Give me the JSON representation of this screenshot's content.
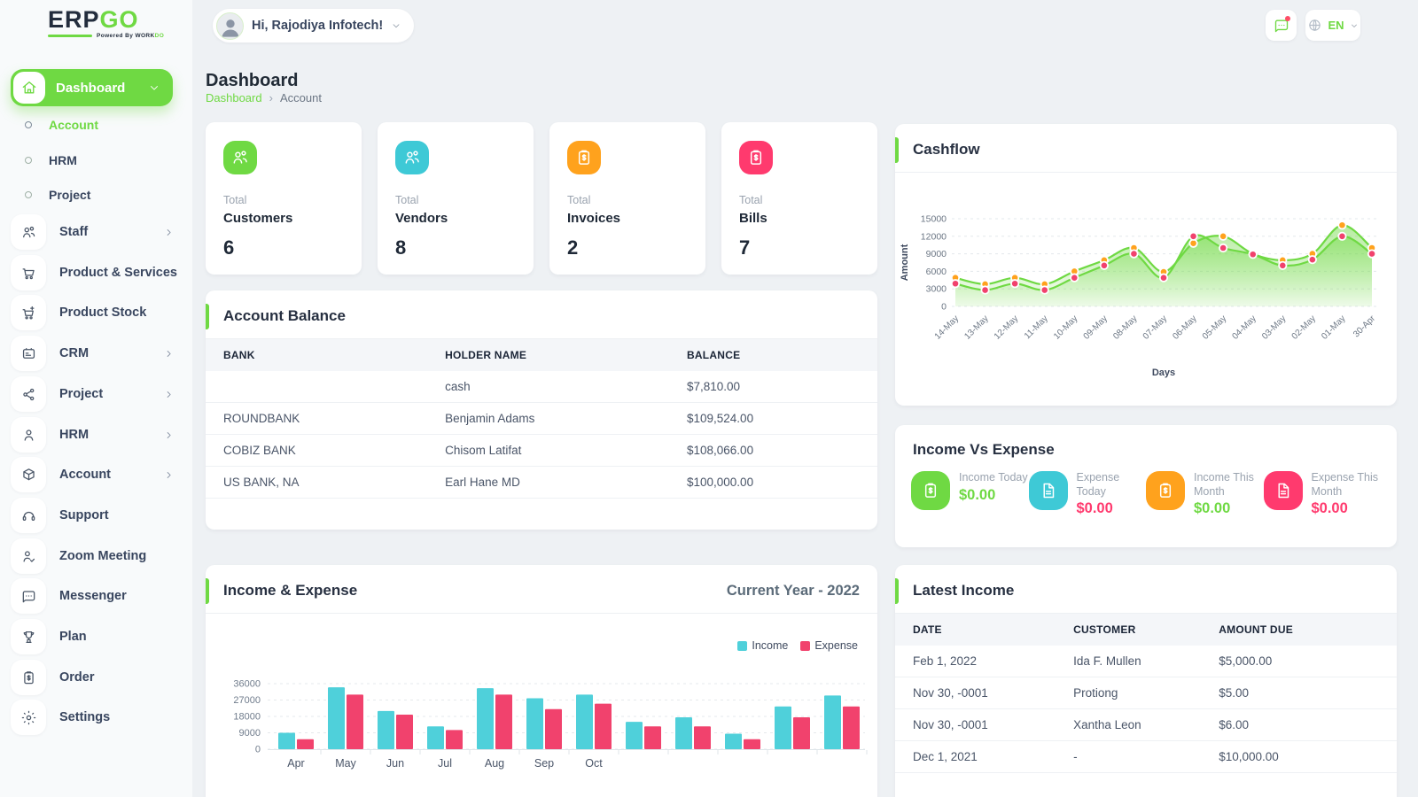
{
  "brand": {
    "name_dark": "ERP",
    "name_green": "GO",
    "powered": "Powered By",
    "powered_dark": "WORK",
    "powered_green": "DO"
  },
  "header": {
    "greeting": "Hi, Rajodiya Infotech!",
    "lang": "EN"
  },
  "page": {
    "title": "Dashboard",
    "breadcrumb_home": "Dashboard",
    "breadcrumb_sep": "›",
    "breadcrumb_current": "Account"
  },
  "sidebar": {
    "dashboard": "Dashboard",
    "subitems": [
      {
        "label": "Account",
        "active": true
      },
      {
        "label": "HRM",
        "active": false
      },
      {
        "label": "Project",
        "active": false
      }
    ],
    "items": [
      {
        "label": "Staff",
        "icon": "users-icon",
        "chevron": true
      },
      {
        "label": "Product & Services",
        "icon": "cart-icon",
        "chevron": false
      },
      {
        "label": "Product Stock",
        "icon": "cart-plus-icon",
        "chevron": false
      },
      {
        "label": "CRM",
        "icon": "id-card-icon",
        "chevron": true
      },
      {
        "label": "Project",
        "icon": "share-nodes-icon",
        "chevron": true
      },
      {
        "label": "HRM",
        "icon": "person-icon",
        "chevron": true
      },
      {
        "label": "Account",
        "icon": "cube-icon",
        "chevron": true
      },
      {
        "label": "Support",
        "icon": "headset-icon",
        "chevron": false
      },
      {
        "label": "Zoom Meeting",
        "icon": "person-check-icon",
        "chevron": false
      },
      {
        "label": "Messenger",
        "icon": "chat-icon",
        "chevron": false
      },
      {
        "label": "Plan",
        "icon": "trophy-icon",
        "chevron": false
      },
      {
        "label": "Order",
        "icon": "clipboard-dollar-icon",
        "chevron": false
      },
      {
        "label": "Settings",
        "icon": "gear-icon",
        "chevron": false
      }
    ]
  },
  "stats": [
    {
      "label_top": "Total",
      "label": "Customers",
      "value": "6",
      "color": "#6fd943",
      "icon": "users-icon"
    },
    {
      "label_top": "Total",
      "label": "Vendors",
      "value": "8",
      "color": "#3ec9d6",
      "icon": "users-icon"
    },
    {
      "label_top": "Total",
      "label": "Invoices",
      "value": "2",
      "color": "#ffa21d",
      "icon": "clipboard-dollar-icon"
    },
    {
      "label_top": "Total",
      "label": "Bills",
      "value": "7",
      "color": "#ff3a6e",
      "icon": "clipboard-dollar-icon"
    }
  ],
  "account_balance": {
    "title": "Account Balance",
    "columns": [
      "BANK",
      "HOLDER NAME",
      "BALANCE"
    ],
    "rows": [
      [
        "",
        "cash",
        "$7,810.00"
      ],
      [
        "ROUNDBANK",
        "Benjamin Adams",
        "$109,524.00"
      ],
      [
        "COBIZ BANK",
        "Chisom Latifat",
        "$108,066.00"
      ],
      [
        "US BANK, NA",
        "Earl Hane MD",
        "$100,000.00"
      ]
    ]
  },
  "latest_income": {
    "title": "Latest Income",
    "columns": [
      "DATE",
      "CUSTOMER",
      "AMOUNT DUE"
    ],
    "rows": [
      [
        "Feb 1, 2022",
        "Ida F. Mullen",
        "$5,000.00"
      ],
      [
        "Nov 30, -0001",
        "Protiong",
        "$5.00"
      ],
      [
        "Nov 30, -0001",
        "Xantha Leon",
        "$6.00"
      ],
      [
        "Dec 1, 2021",
        "-",
        "$10,000.00"
      ]
    ]
  },
  "income_vs_expense": {
    "title": "Income Vs Expense",
    "items": [
      {
        "label": "Income Today",
        "amount": "$0.00",
        "amount_color": "#6fd943",
        "icon": "clipboard-dollar-icon",
        "icon_bg": "#6fd943"
      },
      {
        "label": "Expense Today",
        "amount": "$0.00",
        "amount_color": "#ff3a6e",
        "icon": "document-icon",
        "icon_bg": "#3ec9d6"
      },
      {
        "label": "Income This Month",
        "amount": "$0.00",
        "amount_color": "#6fd943",
        "icon": "clipboard-dollar-icon",
        "icon_bg": "#ffa21d"
      },
      {
        "label": "Expense This Month",
        "amount": "$0.00",
        "amount_color": "#ff3a6e",
        "icon": "document-icon",
        "icon_bg": "#ff3a6e"
      }
    ]
  },
  "chart_data": [
    {
      "id": "cashflow",
      "type": "area",
      "title": "Cashflow",
      "xlabel": "Days",
      "ylabel": "Amount",
      "categories": [
        "14-May",
        "13-May",
        "12-May",
        "11-May",
        "10-May",
        "09-May",
        "08-May",
        "07-May",
        "06-May",
        "05-May",
        "04-May",
        "03-May",
        "02-May",
        "01-May",
        "30-Apr"
      ],
      "yticks": [
        0,
        3000,
        6000,
        9000,
        12000,
        15000
      ],
      "ylim": [
        0,
        15000
      ],
      "grid": "dashed",
      "line_color": "#6fd943",
      "series": [
        {
          "marker_color": "#ffa21d",
          "values": [
            4900,
            3800,
            4900,
            3800,
            6000,
            7900,
            10000,
            5900,
            10800,
            12000,
            9000,
            7900,
            9000,
            13900,
            10000
          ]
        },
        {
          "marker_color": "#f1426d",
          "values": [
            3900,
            2800,
            3900,
            2800,
            4900,
            7000,
            9000,
            4900,
            12000,
            10000,
            8900,
            7000,
            8000,
            12000,
            9000
          ]
        }
      ]
    },
    {
      "id": "income_expense",
      "type": "bar",
      "title": "Income & Expense",
      "subtitle": "Current Year - 2022",
      "categories": [
        "Apr",
        "May",
        "Jun",
        "Jul",
        "Aug",
        "Sep",
        "Oct",
        "",
        "",
        "",
        "",
        ""
      ],
      "yticks": [
        0,
        9000,
        18000,
        27000,
        36000
      ],
      "ylim": [
        0,
        36000
      ],
      "grid": "dashed",
      "legend_position": "top-right",
      "series": [
        {
          "name": "Income",
          "color": "#4fd0da",
          "values": [
            9000,
            34000,
            21000,
            12500,
            33500,
            28000,
            30000,
            15000,
            17500,
            8500,
            23500,
            29500
          ]
        },
        {
          "name": "Expense",
          "color": "#f1426d",
          "values": [
            5500,
            30000,
            19000,
            10500,
            30000,
            22000,
            25000,
            12500,
            12500,
            5500,
            17500,
            23500
          ]
        }
      ]
    }
  ]
}
